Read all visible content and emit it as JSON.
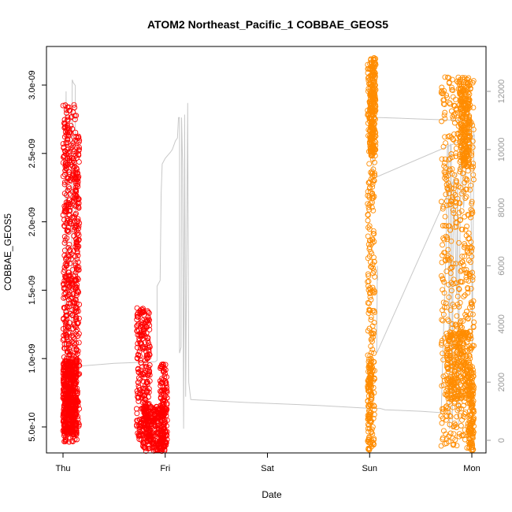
{
  "chart_data": {
    "type": "scatter",
    "title": "ATOM2 Northeast_Pacific_1 COBBAE_GEOS5",
    "xlabel": "Date",
    "ylabel": "COBBAE_GEOS5",
    "x_ticks": [
      "Thu",
      "Fri",
      "Sat",
      "Sun",
      "Mon"
    ],
    "x_range": [
      0,
      4.15
    ],
    "y_left": {
      "range": [
        1.9e-10,
        3.25e-09
      ],
      "ticks": [
        5e-10,
        1e-09,
        1.5e-09,
        2e-09,
        2.5e-09,
        3e-09
      ],
      "tick_labels": [
        "5.0e-10",
        "1.0e-09",
        "1.5e-09",
        "2.0e-09",
        "2.5e-09",
        "3.0e-09"
      ]
    },
    "y_right": {
      "range": [
        -300,
        13000
      ],
      "ticks": [
        0,
        2000,
        4000,
        6000,
        8000,
        10000,
        12000
      ],
      "tick_labels": [
        "0",
        "2000",
        "4000",
        "6000",
        "8000",
        "10000",
        "12000"
      ]
    },
    "colors": {
      "first_half": "#ff0000",
      "second_half": "#ff8c00",
      "altitude": "#c8c8c8",
      "axis": "#000000"
    },
    "altitude_line": [
      [
        0.0,
        1200
      ],
      [
        0.005,
        500
      ],
      [
        0.01,
        900
      ],
      [
        0.015,
        300
      ],
      [
        0.02,
        2500
      ],
      [
        0.025,
        9000
      ],
      [
        0.03,
        12000
      ],
      [
        0.035,
        8000
      ],
      [
        0.04,
        2000
      ],
      [
        0.045,
        600
      ],
      [
        0.05,
        300
      ],
      [
        0.06,
        1200
      ],
      [
        0.065,
        2000
      ],
      [
        0.07,
        2600
      ],
      [
        0.075,
        3000
      ],
      [
        0.08,
        3500
      ],
      [
        0.085,
        5000
      ],
      [
        0.09,
        12400
      ],
      [
        0.1,
        12300
      ],
      [
        0.12,
        12200
      ],
      [
        0.125,
        3000
      ],
      [
        0.16,
        2550
      ],
      [
        0.5,
        2650
      ],
      [
        0.9,
        2700
      ],
      [
        0.92,
        2750
      ],
      [
        0.92,
        5300
      ],
      [
        0.95,
        5500
      ],
      [
        0.96,
        8500
      ],
      [
        0.97,
        9500
      ],
      [
        1.0,
        9700
      ],
      [
        1.05,
        9900
      ],
      [
        1.07,
        10000
      ],
      [
        1.1,
        10300
      ],
      [
        1.12,
        10400
      ],
      [
        1.13,
        11100
      ],
      [
        1.14,
        11100
      ],
      [
        1.14,
        3000
      ],
      [
        1.155,
        3200
      ],
      [
        1.16,
        11100
      ],
      [
        1.17,
        9500
      ],
      [
        1.18,
        400
      ],
      [
        1.19,
        11200
      ],
      [
        1.2,
        1500
      ],
      [
        1.22,
        11600
      ],
      [
        1.23,
        2000
      ],
      [
        1.25,
        1400
      ],
      [
        1.8,
        1300
      ],
      [
        2.5,
        1200
      ],
      [
        3.0,
        1100
      ],
      [
        3.1,
        1100
      ],
      [
        3.15,
        1050
      ],
      [
        3.5,
        1000
      ],
      [
        3.7,
        950
      ],
      [
        3.75,
        7000
      ],
      [
        3.76,
        10000
      ],
      [
        3.77,
        10200
      ],
      [
        3.78,
        400
      ],
      [
        3.79,
        10200
      ],
      [
        3.8,
        10100
      ],
      [
        3.81,
        400
      ],
      [
        3.82,
        9000
      ],
      [
        3.83,
        8000
      ],
      [
        3.85,
        5000
      ],
      [
        3.86,
        9000
      ],
      [
        3.87,
        400
      ],
      [
        3.88,
        6000
      ],
      [
        3.9,
        10500
      ],
      [
        3.92,
        8000
      ],
      [
        3.94,
        9000
      ],
      [
        3.95,
        10800
      ],
      [
        3.96,
        11100
      ],
      [
        3.98,
        11100
      ],
      [
        4.0,
        6000
      ],
      [
        4.005,
        3000
      ],
      [
        4.01,
        6000
      ],
      [
        4.02,
        10000
      ],
      [
        4.025,
        10500
      ],
      [
        3.03,
        9000
      ],
      [
        3.04,
        11100
      ],
      [
        3.05,
        11100
      ],
      [
        3.1,
        11100
      ],
      [
        3.5,
        11050
      ],
      [
        3.9,
        11000
      ],
      [
        4.0,
        11000
      ],
      [
        4.02,
        10500
      ],
      [
        3.07,
        3000
      ],
      [
        3.075,
        6000
      ],
      [
        3.08,
        5500
      ]
    ],
    "series": [
      {
        "color": "#ff0000",
        "segments": [
          {
            "x": [
              0.0,
              0.135
            ],
            "y": [
              3.8e-10,
              2.86e-09
            ],
            "n": 350
          },
          {
            "x": [
              0.0,
              0.135
            ],
            "y": [
              4.5e-10,
              1e-09
            ],
            "n": 450
          },
          {
            "x": [
              0.01,
              0.07
            ],
            "y": [
              4e-10,
              2.8e-09
            ],
            "n": 120
          },
          {
            "x": [
              0.12,
              0.16
            ],
            "y": [
              5e-10,
              2.63e-09
            ],
            "n": 160
          },
          {
            "x": [
              0.72,
              0.85
            ],
            "y": [
              4e-10,
              1.37e-09
            ],
            "n": 240
          },
          {
            "x": [
              0.78,
              1.0
            ],
            "y": [
              2.4e-10,
              6.5e-10
            ],
            "n": 360
          },
          {
            "x": [
              0.95,
              1.02
            ],
            "y": [
              2.4e-10,
              9.6e-10
            ],
            "n": 140
          }
        ]
      },
      {
        "color": "#ff8c00",
        "segments": [
          {
            "x": [
              2.98,
              3.05
            ],
            "y": [
              2.8e-10,
              3.2e-09
            ],
            "n": 260
          },
          {
            "x": [
              3.0,
              3.06
            ],
            "y": [
              2.48e-09,
              3.2e-09
            ],
            "n": 220
          },
          {
            "x": [
              2.98,
              3.02
            ],
            "y": [
              2.8e-10,
              1e-09
            ],
            "n": 80
          },
          {
            "x": [
              3.7,
              4.02
            ],
            "y": [
              3e-10,
              3.06e-09
            ],
            "n": 560
          },
          {
            "x": [
              3.75,
              4.0
            ],
            "y": [
              7e-10,
              1.2e-09
            ],
            "n": 240
          },
          {
            "x": [
              3.88,
              3.98
            ],
            "y": [
              2.4e-09,
              3.06e-09
            ],
            "n": 220
          },
          {
            "x": [
              3.97,
              4.02
            ],
            "y": [
              3e-10,
              8.8e-10
            ],
            "n": 120
          }
        ]
      }
    ]
  }
}
